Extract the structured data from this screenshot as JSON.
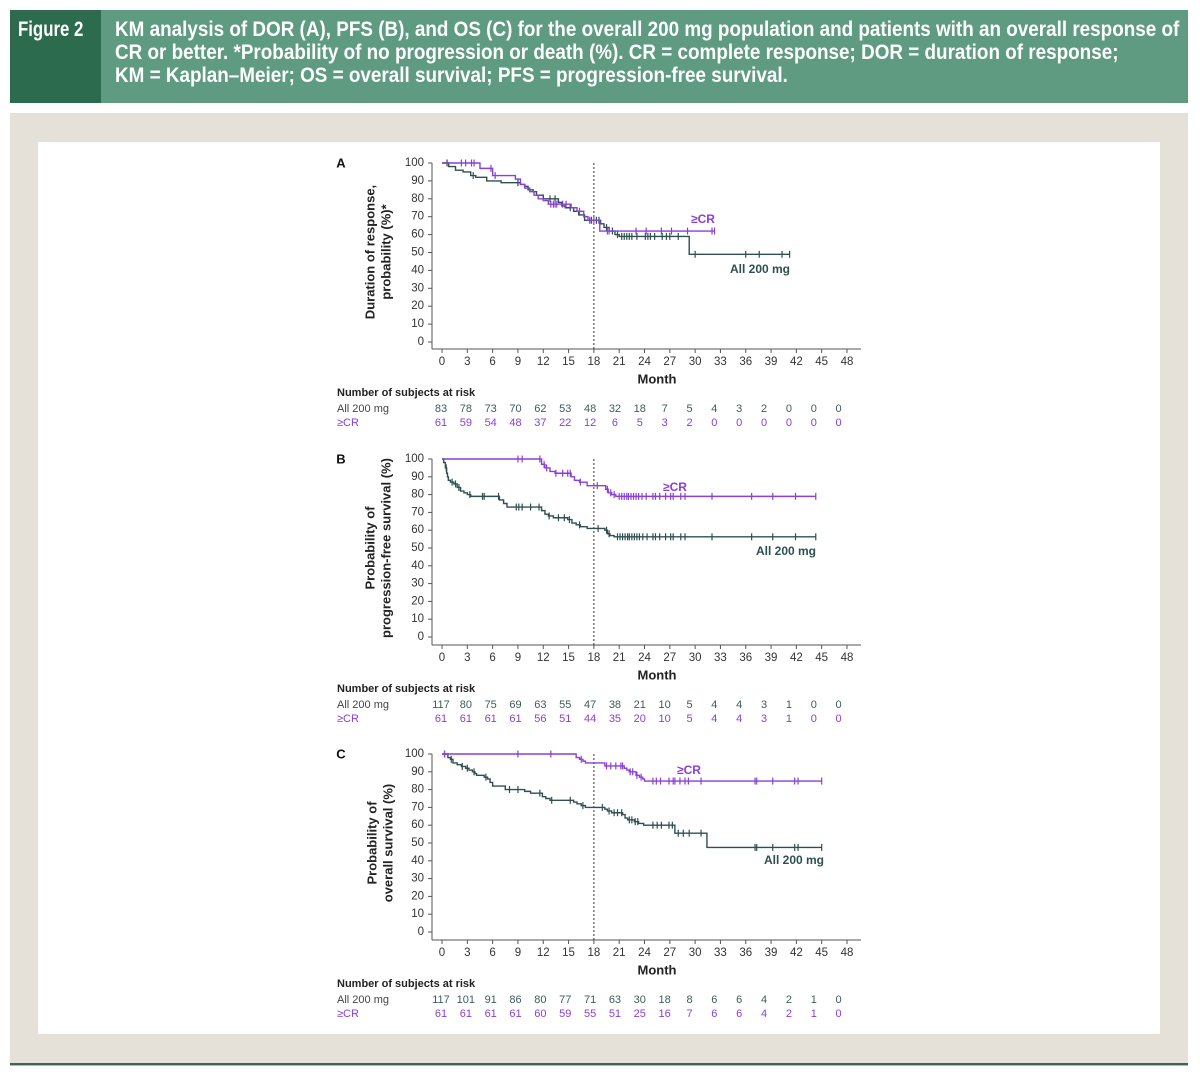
{
  "figure": {
    "label": "Figure 2",
    "caption_lines": [
      "KM analysis of DOR (A), PFS (B), and OS (C) for the overall 200 mg population and patients with an overall response of",
      "CR or better. *Probability of no progression or death (%). CR = complete response; DOR = duration of response;",
      "KM = Kaplan–Meier; OS = overall survival; PFS = progression-free survival."
    ],
    "colors": {
      "header_dark": "#2d6b4f",
      "header_light": "#5e9b81",
      "frame": "#e5e1d9"
    }
  },
  "chart_data": [
    {
      "type": "line",
      "subtype": "kaplan-meier",
      "panel_label": "A",
      "y_label": [
        "Duration of response,",
        "probability (%)*"
      ],
      "x_label": "Month",
      "xlim": [
        0,
        48
      ],
      "ylim": [
        0,
        100
      ],
      "x_ticks": [
        0,
        3,
        6,
        9,
        12,
        15,
        18,
        21,
        24,
        27,
        30,
        33,
        36,
        39,
        42,
        45,
        48
      ],
      "y_ticks": [
        0,
        10,
        20,
        30,
        40,
        50,
        60,
        70,
        80,
        90,
        100
      ],
      "reference_line_x": 18,
      "series": [
        {
          "name": "All 200 mg",
          "label": "All 200 mg",
          "color": "#2e5050",
          "steps": [
            [
              0,
              100
            ],
            [
              0.8,
              98
            ],
            [
              1.6,
              96
            ],
            [
              2.5,
              95
            ],
            [
              3.4,
              93
            ],
            [
              4.0,
              92
            ],
            [
              5.3,
              90
            ],
            [
              7.0,
              89
            ],
            [
              9.3,
              88
            ],
            [
              9.8,
              87
            ],
            [
              10.2,
              85
            ],
            [
              10.8,
              84
            ],
            [
              11.2,
              82
            ],
            [
              12.0,
              80
            ],
            [
              13.8,
              78
            ],
            [
              14.2,
              76
            ],
            [
              14.6,
              75
            ],
            [
              15.6,
              73
            ],
            [
              16.2,
              71
            ],
            [
              16.9,
              68
            ],
            [
              18.8,
              66
            ],
            [
              19.2,
              64
            ],
            [
              19.8,
              62
            ],
            [
              20.5,
              60
            ],
            [
              21.0,
              59
            ],
            [
              29.3,
              49
            ]
          ],
          "end": 41.2,
          "censored": [
            0.6,
            3.7,
            9.0,
            12.8,
            13.4,
            15.2,
            17.7,
            18.3,
            18.6,
            19.5,
            20.2,
            20.8,
            21.3,
            21.6,
            21.9,
            22.2,
            22.5,
            23.1,
            24.1,
            24.4,
            24.7,
            25.2,
            26.1,
            26.6,
            27.0,
            28.0,
            30.0,
            36.0,
            37.6,
            40.3,
            41.2
          ]
        },
        {
          "name": "≥CR",
          "label": "≥CR",
          "color": "#8a3fd6",
          "steps": [
            [
              0,
              100
            ],
            [
              4.5,
              97
            ],
            [
              6.0,
              93
            ],
            [
              8.7,
              91
            ],
            [
              9.3,
              88
            ],
            [
              9.8,
              86
            ],
            [
              10.4,
              84
            ],
            [
              10.9,
              82
            ],
            [
              11.4,
              80
            ],
            [
              12.0,
              79
            ],
            [
              12.6,
              77
            ],
            [
              15.3,
              75
            ],
            [
              16.0,
              73
            ],
            [
              16.8,
              70
            ],
            [
              17.3,
              68
            ],
            [
              18.7,
              62
            ]
          ],
          "end": 32.3,
          "censored": [
            2.3,
            2.8,
            3.5,
            3.8,
            5.8,
            6.3,
            12.9,
            13.2,
            13.4,
            13.6,
            14.3,
            14.7,
            16.3,
            17.5,
            18.0,
            19.6,
            19.8,
            23.0,
            24.2,
            26.0,
            27.2,
            29.1,
            32.0,
            32.3
          ]
        }
      ],
      "risk_table": {
        "title": "Number of subjects at risk",
        "times": [
          0,
          3,
          6,
          9,
          12,
          15,
          18,
          21,
          24,
          27,
          30,
          33,
          36,
          39,
          42,
          45,
          48
        ],
        "rows": [
          {
            "label": "All 200 mg",
            "values": [
              83,
              78,
              73,
              70,
              62,
              53,
              48,
              32,
              18,
              7,
              5,
              4,
              3,
              2,
              0,
              0,
              0
            ]
          },
          {
            "label": "≥CR",
            "values": [
              61,
              59,
              54,
              48,
              37,
              22,
              12,
              6,
              5,
              3,
              2,
              0,
              0,
              0,
              0,
              0,
              0
            ]
          }
        ]
      }
    },
    {
      "type": "line",
      "subtype": "kaplan-meier",
      "panel_label": "B",
      "y_label": [
        "Probability of",
        "progression-free survival (%)"
      ],
      "x_label": "Month",
      "xlim": [
        0,
        48
      ],
      "ylim": [
        0,
        100
      ],
      "x_ticks": [
        0,
        3,
        6,
        9,
        12,
        15,
        18,
        21,
        24,
        27,
        30,
        33,
        36,
        39,
        42,
        45,
        48
      ],
      "y_ticks": [
        0,
        10,
        20,
        30,
        40,
        50,
        60,
        70,
        80,
        90,
        100
      ],
      "reference_line_x": 18,
      "series": [
        {
          "name": "All 200 mg",
          "label": "All 200 mg",
          "color": "#2e5050",
          "steps": [
            [
              0,
              100
            ],
            [
              0.2,
              98
            ],
            [
              0.4,
              95
            ],
            [
              0.55,
              92
            ],
            [
              0.65,
              90
            ],
            [
              0.75,
              88
            ],
            [
              1.0,
              87
            ],
            [
              1.4,
              86
            ],
            [
              1.8,
              84
            ],
            [
              2.2,
              82
            ],
            [
              2.6,
              81
            ],
            [
              3.0,
              80
            ],
            [
              3.4,
              79
            ],
            [
              6.8,
              77
            ],
            [
              7.3,
              75
            ],
            [
              7.7,
              73
            ],
            [
              11.8,
              71
            ],
            [
              12.2,
              69
            ],
            [
              12.6,
              68
            ],
            [
              13.2,
              67
            ],
            [
              14.9,
              66
            ],
            [
              15.4,
              64
            ],
            [
              15.9,
              63
            ],
            [
              16.4,
              62
            ],
            [
              17.2,
              61
            ],
            [
              19.3,
              60
            ],
            [
              19.6,
              58
            ],
            [
              19.9,
              57
            ],
            [
              20.4,
              56.3
            ]
          ],
          "end": 44.3,
          "censored": [
            0.5,
            1.2,
            1.6,
            2.0,
            3.3,
            4.8,
            5.0,
            6.7,
            8.8,
            9.1,
            9.5,
            10.5,
            11.5,
            12.7,
            13.8,
            14.5,
            15.1,
            16.3,
            18.5,
            19.5,
            19.8,
            20.8,
            21.1,
            21.4,
            21.7,
            22.0,
            22.2,
            22.5,
            22.8,
            23.1,
            23.4,
            23.8,
            24.3,
            25.0,
            25.3,
            25.8,
            26.5,
            27.1,
            27.4,
            28.3,
            28.8,
            32.0,
            36.7,
            39.2,
            41.9,
            44.3
          ]
        },
        {
          "name": "≥CR",
          "label": "≥CR",
          "color": "#8a3fd6",
          "steps": [
            [
              0,
              100
            ],
            [
              11.8,
              97
            ],
            [
              12.2,
              95
            ],
            [
              12.8,
              93
            ],
            [
              13.4,
              92
            ],
            [
              15.3,
              90
            ],
            [
              15.7,
              88
            ],
            [
              16.3,
              87
            ],
            [
              17.2,
              85
            ],
            [
              19.4,
              83
            ],
            [
              19.7,
              81
            ],
            [
              20.1,
              80
            ],
            [
              20.6,
              79
            ]
          ],
          "end": 44.3,
          "censored": [
            9.0,
            9.5,
            11.6,
            12.1,
            12.4,
            13.5,
            14.3,
            14.9,
            15.2,
            16.4,
            18.4,
            19.6,
            20.0,
            20.4,
            21.0,
            21.3,
            21.6,
            21.9,
            22.1,
            22.4,
            22.7,
            23.0,
            23.3,
            23.7,
            24.2,
            25.0,
            25.3,
            25.8,
            26.5,
            27.1,
            27.4,
            28.3,
            28.8,
            32.0,
            36.7,
            39.2,
            41.9,
            44.3
          ]
        }
      ],
      "risk_table": {
        "title": "Number of subjects at risk",
        "times": [
          0,
          3,
          6,
          9,
          12,
          15,
          18,
          21,
          24,
          27,
          30,
          33,
          36,
          39,
          42,
          45,
          48
        ],
        "rows": [
          {
            "label": "All 200 mg",
            "values": [
              117,
              80,
              75,
              69,
              63,
              55,
              47,
              38,
              21,
              10,
              5,
              4,
              4,
              3,
              1,
              0,
              0
            ]
          },
          {
            "label": "≥CR",
            "values": [
              61,
              61,
              61,
              61,
              56,
              51,
              44,
              35,
              20,
              10,
              5,
              4,
              4,
              3,
              1,
              0,
              0
            ]
          }
        ]
      }
    },
    {
      "type": "line",
      "subtype": "kaplan-meier",
      "panel_label": "C",
      "y_label": [
        "Probability of",
        "overall survival (%)"
      ],
      "x_label": "Month",
      "xlim": [
        0,
        48
      ],
      "ylim": [
        0,
        100
      ],
      "x_ticks": [
        0,
        3,
        6,
        9,
        12,
        15,
        18,
        21,
        24,
        27,
        30,
        33,
        36,
        39,
        42,
        45,
        48
      ],
      "y_ticks": [
        0,
        10,
        20,
        30,
        40,
        50,
        60,
        70,
        80,
        90,
        100
      ],
      "reference_line_x": 18,
      "series": [
        {
          "name": "All 200 mg",
          "label": "All 200 mg",
          "color": "#2e5050",
          "steps": [
            [
              0,
              100
            ],
            [
              0.7,
              98
            ],
            [
              1.0,
              97
            ],
            [
              1.3,
              95
            ],
            [
              1.8,
              94
            ],
            [
              2.3,
              93
            ],
            [
              2.8,
              92
            ],
            [
              3.2,
              91
            ],
            [
              3.6,
              90
            ],
            [
              3.9,
              89
            ],
            [
              4.1,
              88
            ],
            [
              5.0,
              87
            ],
            [
              5.4,
              86
            ],
            [
              5.7,
              84
            ],
            [
              6.0,
              82
            ],
            [
              7.5,
              80
            ],
            [
              9.8,
              79
            ],
            [
              10.5,
              78
            ],
            [
              11.9,
              76
            ],
            [
              12.3,
              75
            ],
            [
              12.8,
              74
            ],
            [
              15.6,
              73
            ],
            [
              16.0,
              72
            ],
            [
              16.5,
              71
            ],
            [
              17.0,
              70
            ],
            [
              19.3,
              69
            ],
            [
              19.6,
              68
            ],
            [
              20.1,
              67
            ],
            [
              21.4,
              66
            ],
            [
              21.7,
              64
            ],
            [
              22.0,
              63
            ],
            [
              22.8,
              62
            ],
            [
              23.3,
              61
            ],
            [
              23.9,
              60
            ],
            [
              27.6,
              55.5
            ],
            [
              31.4,
              47.5
            ]
          ],
          "end": 45.0,
          "censored": [
            0.3,
            1.1,
            2.4,
            3.0,
            3.8,
            5.2,
            8.0,
            9.0,
            11.6,
            13.0,
            15.2,
            16.7,
            19.0,
            19.8,
            20.4,
            20.8,
            21.3,
            22.2,
            22.5,
            22.9,
            23.2,
            25.0,
            25.5,
            26.0,
            26.9,
            27.3,
            28.0,
            28.6,
            29.3,
            30.7,
            37.1,
            37.3,
            39.2,
            41.8,
            42.2,
            45.0
          ]
        },
        {
          "name": "≥CR",
          "label": "≥CR",
          "color": "#8a3fd6",
          "steps": [
            [
              0,
              100
            ],
            [
              15.9,
              98
            ],
            [
              16.3,
              97
            ],
            [
              16.7,
              96
            ],
            [
              17.0,
              95
            ],
            [
              19.3,
              93.3
            ],
            [
              21.6,
              92
            ],
            [
              21.9,
              91
            ],
            [
              22.2,
              90
            ],
            [
              23.0,
              88
            ],
            [
              23.4,
              87
            ],
            [
              23.8,
              86
            ],
            [
              24.0,
              84.8
            ]
          ],
          "end": 45.0,
          "censored": [
            0.3,
            9.0,
            12.9,
            16.5,
            19.5,
            20.0,
            20.6,
            21.2,
            21.4,
            22.3,
            22.6,
            23.1,
            23.6,
            25.0,
            25.4,
            25.9,
            26.9,
            27.4,
            27.6,
            28.2,
            28.8,
            29.2,
            30.7,
            37.1,
            37.3,
            39.2,
            41.8,
            42.2,
            45.0
          ]
        }
      ],
      "risk_table": {
        "title": "Number of subjects at risk",
        "times": [
          0,
          3,
          6,
          9,
          12,
          15,
          18,
          21,
          24,
          27,
          30,
          33,
          36,
          39,
          42,
          45,
          48
        ],
        "rows": [
          {
            "label": "All 200 mg",
            "values": [
              117,
              101,
              91,
              86,
              80,
              77,
              71,
              63,
              30,
              18,
              8,
              6,
              6,
              4,
              2,
              1,
              0
            ]
          },
          {
            "label": "≥CR",
            "values": [
              61,
              61,
              61,
              61,
              60,
              59,
              55,
              51,
              25,
              16,
              7,
              6,
              6,
              4,
              2,
              1,
              0
            ]
          }
        ]
      }
    }
  ]
}
